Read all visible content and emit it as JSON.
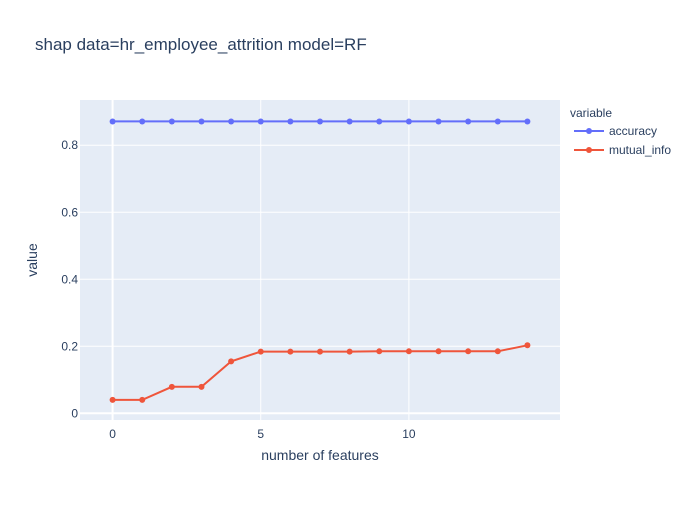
{
  "chart_data": {
    "type": "line",
    "title": "shap data=hr_employee_attrition model=RF",
    "xlabel": "number of features",
    "ylabel": "value",
    "legend_title": "variable",
    "legend_position": "top-right, outside plot",
    "grid": true,
    "xlim": [
      -1.1,
      15.1
    ],
    "ylim": [
      -0.02,
      0.935
    ],
    "xticks": [
      0,
      5,
      10
    ],
    "yticks": [
      0,
      0.2,
      0.4,
      0.6,
      0.8
    ],
    "ytick_labels": [
      "0",
      "0.2",
      "0.4",
      "0.6",
      "0.8"
    ],
    "x": [
      0,
      1,
      2,
      3,
      4,
      5,
      6,
      7,
      8,
      9,
      10,
      11,
      12,
      13,
      14
    ],
    "series": [
      {
        "name": "accuracy",
        "color": "#636efa",
        "values": [
          0.871,
          0.871,
          0.871,
          0.871,
          0.871,
          0.871,
          0.871,
          0.871,
          0.871,
          0.871,
          0.871,
          0.871,
          0.871,
          0.871,
          0.871
        ]
      },
      {
        "name": "mutual_info",
        "color": "#ef553b",
        "values": [
          0.04,
          0.04,
          0.079,
          0.079,
          0.155,
          0.184,
          0.184,
          0.184,
          0.184,
          0.185,
          0.185,
          0.185,
          0.185,
          0.185,
          0.203
        ]
      }
    ],
    "colors": {
      "plot_bg": "#e5ecf6",
      "grid": "#ffffff",
      "text": "#2a3f5f"
    }
  }
}
